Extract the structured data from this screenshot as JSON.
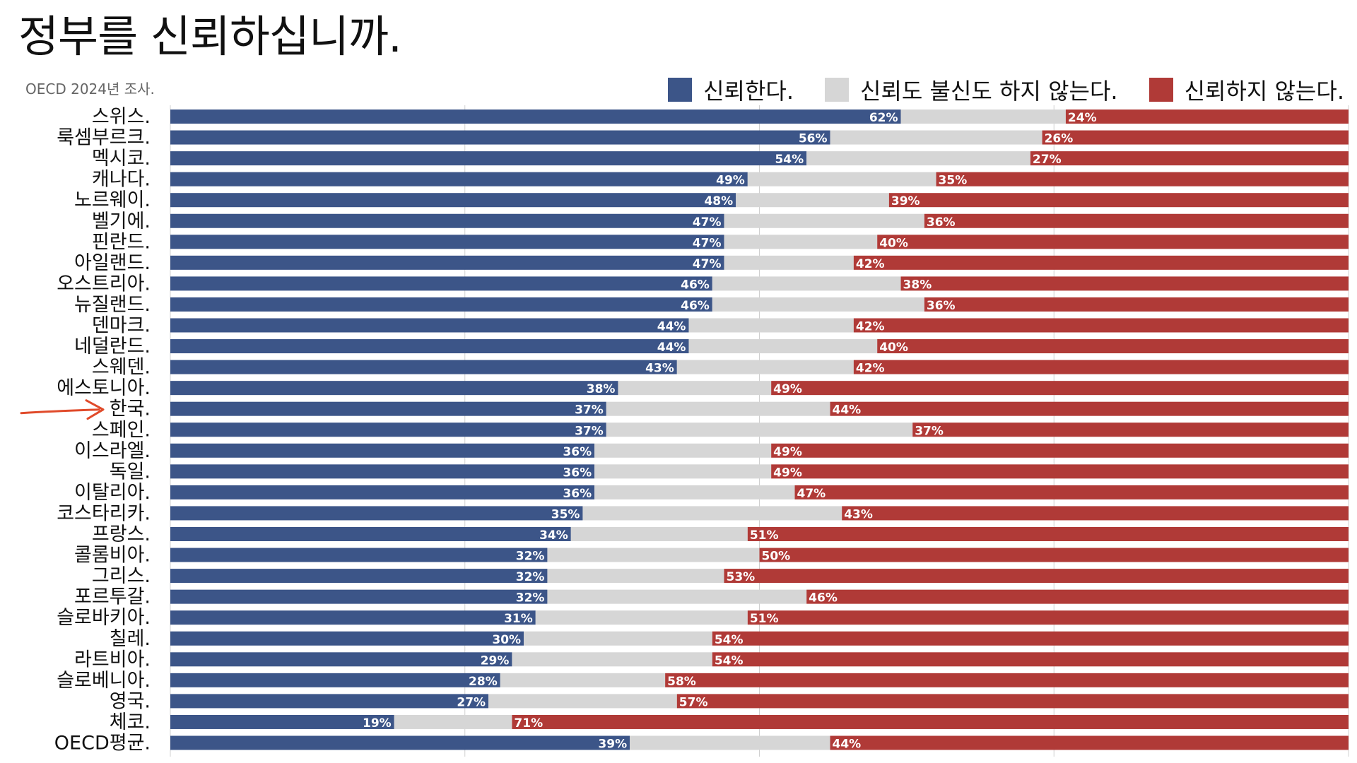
{
  "title": "정부를 신뢰하십니까.",
  "subtitle": "OECD 2024년 조사.",
  "legend": [
    {
      "label": "신뢰한다.",
      "color": "#3c5588"
    },
    {
      "label": "신뢰도 불신도 하지 않는다.",
      "color": "#d6d6d6"
    },
    {
      "label": "신뢰하지 않는다.",
      "color": "#b03a37"
    }
  ],
  "chart_data": {
    "type": "bar",
    "orientation": "horizontal-stacked",
    "xlim": [
      0,
      100
    ],
    "grid": true,
    "legend_position": "top-right",
    "highlight_category": "한국.",
    "categories": [
      "스위스.",
      "룩셈부르크.",
      "멕시코.",
      "캐나다.",
      "노르웨이.",
      "벨기에.",
      "핀란드.",
      "아일랜드.",
      "오스트리아.",
      "뉴질랜드.",
      "덴마크.",
      "네덜란드.",
      "스웨덴.",
      "에스토니아.",
      "한국.",
      "스페인.",
      "이스라엘.",
      "독일.",
      "이탈리아.",
      "코스타리카.",
      "프랑스.",
      "콜롬비아.",
      "그리스.",
      "포르투갈.",
      "슬로바키아.",
      "칠레.",
      "라트비아.",
      "슬로베니아.",
      "영국.",
      "체코.",
      "OECD평균."
    ],
    "series": [
      {
        "name": "신뢰한다.",
        "values": [
          62,
          56,
          54,
          49,
          48,
          47,
          47,
          47,
          46,
          46,
          44,
          44,
          43,
          38,
          37,
          37,
          36,
          36,
          36,
          35,
          34,
          32,
          32,
          32,
          31,
          30,
          29,
          28,
          27,
          19,
          39
        ]
      },
      {
        "name": "신뢰도 불신도 하지 않는다.",
        "values": [
          14,
          18,
          19,
          16,
          13,
          17,
          13,
          11,
          16,
          18,
          14,
          16,
          15,
          13,
          19,
          26,
          15,
          15,
          17,
          22,
          15,
          18,
          15,
          22,
          18,
          16,
          17,
          14,
          16,
          10,
          17
        ]
      },
      {
        "name": "신뢰하지 않는다.",
        "values": [
          24,
          26,
          27,
          35,
          39,
          36,
          40,
          42,
          38,
          36,
          42,
          40,
          42,
          49,
          44,
          37,
          49,
          49,
          47,
          43,
          51,
          50,
          53,
          46,
          51,
          54,
          54,
          58,
          57,
          71,
          44
        ]
      }
    ],
    "value_labels": {
      "trust": [
        "62%",
        "56%",
        "54%",
        "49%",
        "48%",
        "47%",
        "47%",
        "47%",
        "46%",
        "46%",
        "44%",
        "44%",
        "43%",
        "38%",
        "37%",
        "37%",
        "36%",
        "36%",
        "36%",
        "35%",
        "34%",
        "32%",
        "32%",
        "32%",
        "31%",
        "30%",
        "29%",
        "28%",
        "27%",
        "19%",
        "39%"
      ],
      "distrust": [
        "24%",
        "26%",
        "27%",
        "35%",
        "39%",
        "36%",
        "40%",
        "42%",
        "38%",
        "36%",
        "42%",
        "40%",
        "42%",
        "49%",
        "44%",
        "37%",
        "49%",
        "49%",
        "47%",
        "43%",
        "51%",
        "50%",
        "53%",
        "46%",
        "51%",
        "54%",
        "54%",
        "58%",
        "57%",
        "71%",
        "44%"
      ]
    }
  }
}
